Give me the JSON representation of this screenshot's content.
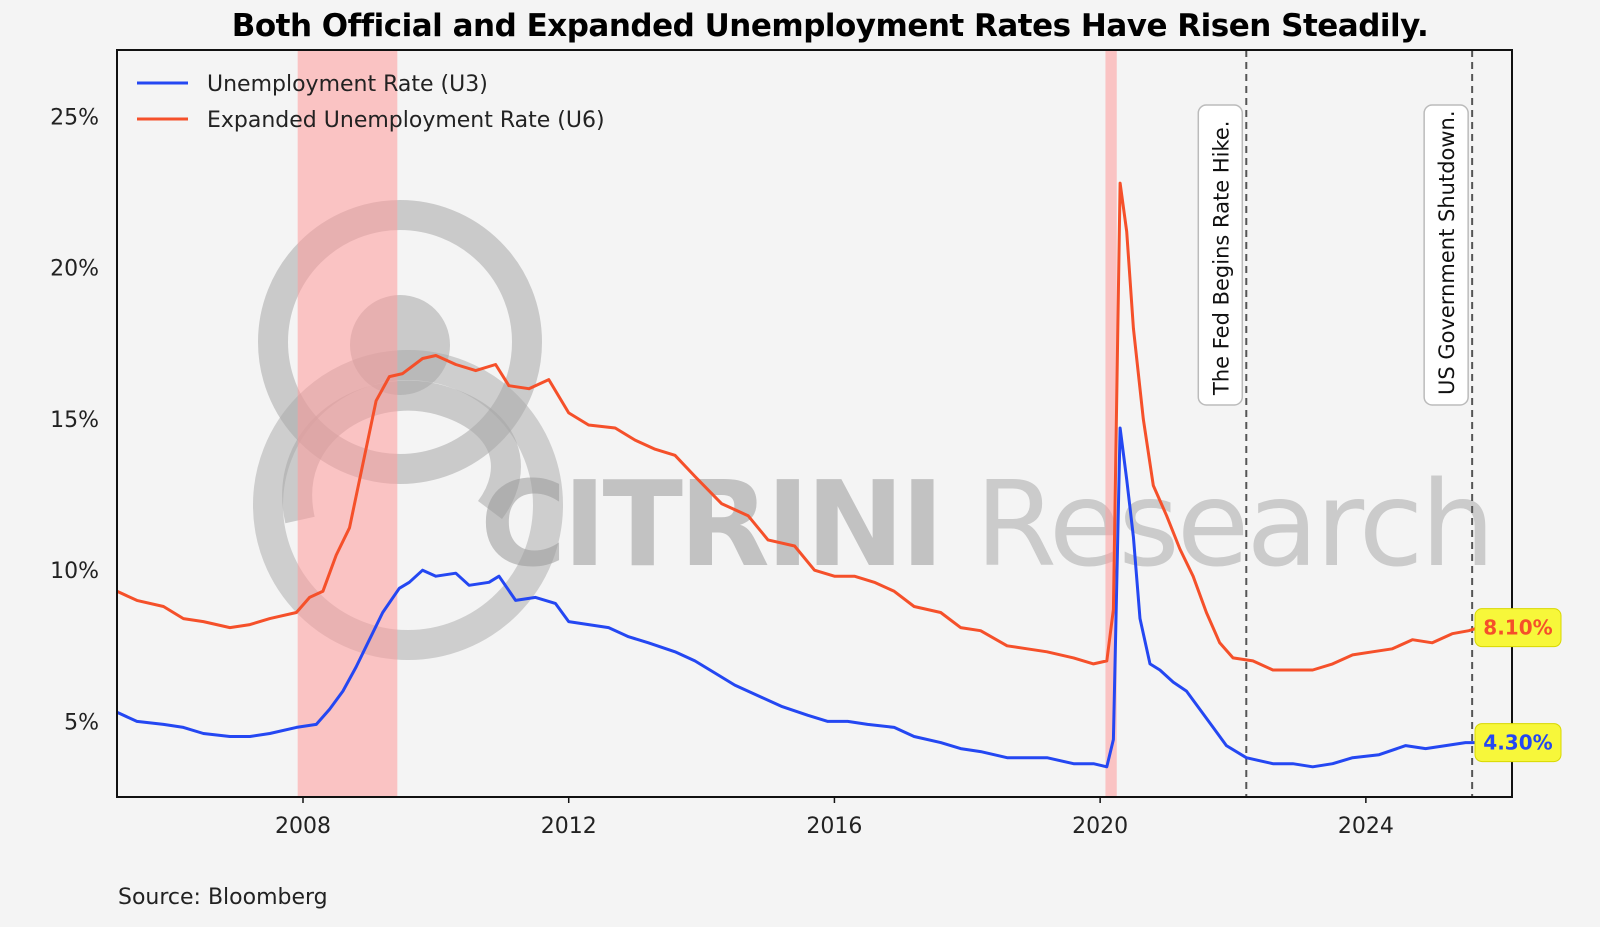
{
  "title": "Both Official and Expanded Unemployment Rates Have Risen Steadily.",
  "source": "Source: Bloomberg",
  "watermark": {
    "bold": "CITRINI",
    "light": "Research"
  },
  "colors": {
    "u3": "#2447f2",
    "u6": "#f5502a",
    "recession": "#ff9a9a",
    "label_bg": "#f7f73a"
  },
  "chart_data": {
    "type": "line",
    "title": "Both Official and Expanded Unemployment Rates Have Risen Steadily.",
    "xlim": [
      2005.2,
      2026.2
    ],
    "ylim": [
      2.5,
      27.2
    ],
    "x_ticks": [
      2008,
      2012,
      2016,
      2020,
      2024
    ],
    "x_tick_labels": [
      "2008",
      "2012",
      "2016",
      "2020",
      "2024"
    ],
    "y_ticks": [
      5,
      10,
      15,
      20,
      25
    ],
    "y_tick_labels": [
      "5%",
      "10%",
      "15%",
      "20%",
      "25%"
    ],
    "legend_position": "top-left",
    "grid": false,
    "recessions": [
      [
        2007.92,
        2009.42
      ],
      [
        2020.08,
        2020.25
      ]
    ],
    "events": [
      {
        "x": 2022.2,
        "label": "The Fed Begins Rate Hike."
      },
      {
        "x": 2025.6,
        "label": "US Government Shutdown."
      }
    ],
    "end_labels": {
      "u6": "8.10%",
      "u3": "4.30%"
    },
    "series": [
      {
        "name": "Unemployment Rate (U3)",
        "key": "u3",
        "points": [
          [
            2005.2,
            5.3
          ],
          [
            2005.5,
            5.0
          ],
          [
            2005.9,
            4.9
          ],
          [
            2006.2,
            4.8
          ],
          [
            2006.5,
            4.6
          ],
          [
            2006.9,
            4.5
          ],
          [
            2007.2,
            4.5
          ],
          [
            2007.5,
            4.6
          ],
          [
            2007.9,
            4.8
          ],
          [
            2008.2,
            4.9
          ],
          [
            2008.4,
            5.4
          ],
          [
            2008.6,
            6.0
          ],
          [
            2008.8,
            6.8
          ],
          [
            2009.0,
            7.7
          ],
          [
            2009.2,
            8.6
          ],
          [
            2009.45,
            9.4
          ],
          [
            2009.6,
            9.6
          ],
          [
            2009.8,
            10.0
          ],
          [
            2010.0,
            9.8
          ],
          [
            2010.3,
            9.9
          ],
          [
            2010.5,
            9.5
          ],
          [
            2010.8,
            9.6
          ],
          [
            2010.95,
            9.8
          ],
          [
            2011.2,
            9.0
          ],
          [
            2011.5,
            9.1
          ],
          [
            2011.8,
            8.9
          ],
          [
            2012.0,
            8.3
          ],
          [
            2012.3,
            8.2
          ],
          [
            2012.6,
            8.1
          ],
          [
            2012.9,
            7.8
          ],
          [
            2013.2,
            7.6
          ],
          [
            2013.6,
            7.3
          ],
          [
            2013.9,
            7.0
          ],
          [
            2014.2,
            6.6
          ],
          [
            2014.5,
            6.2
          ],
          [
            2014.9,
            5.8
          ],
          [
            2015.2,
            5.5
          ],
          [
            2015.6,
            5.2
          ],
          [
            2015.9,
            5.0
          ],
          [
            2016.2,
            5.0
          ],
          [
            2016.5,
            4.9
          ],
          [
            2016.9,
            4.8
          ],
          [
            2017.2,
            4.5
          ],
          [
            2017.6,
            4.3
          ],
          [
            2017.9,
            4.1
          ],
          [
            2018.2,
            4.0
          ],
          [
            2018.6,
            3.8
          ],
          [
            2018.9,
            3.8
          ],
          [
            2019.2,
            3.8
          ],
          [
            2019.6,
            3.6
          ],
          [
            2019.9,
            3.6
          ],
          [
            2020.1,
            3.5
          ],
          [
            2020.2,
            4.4
          ],
          [
            2020.3,
            14.7
          ],
          [
            2020.4,
            13.0
          ],
          [
            2020.5,
            11.1
          ],
          [
            2020.6,
            8.4
          ],
          [
            2020.75,
            6.9
          ],
          [
            2020.9,
            6.7
          ],
          [
            2021.1,
            6.3
          ],
          [
            2021.3,
            6.0
          ],
          [
            2021.5,
            5.4
          ],
          [
            2021.7,
            4.8
          ],
          [
            2021.9,
            4.2
          ],
          [
            2022.2,
            3.8
          ],
          [
            2022.6,
            3.6
          ],
          [
            2022.9,
            3.6
          ],
          [
            2023.2,
            3.5
          ],
          [
            2023.5,
            3.6
          ],
          [
            2023.8,
            3.8
          ],
          [
            2024.2,
            3.9
          ],
          [
            2024.6,
            4.2
          ],
          [
            2024.9,
            4.1
          ],
          [
            2025.2,
            4.2
          ],
          [
            2025.5,
            4.3
          ],
          [
            2025.7,
            4.3
          ]
        ]
      },
      {
        "name": "Expanded Unemployment Rate (U6)",
        "key": "u6",
        "points": [
          [
            2005.2,
            9.3
          ],
          [
            2005.5,
            9.0
          ],
          [
            2005.9,
            8.8
          ],
          [
            2006.2,
            8.4
          ],
          [
            2006.5,
            8.3
          ],
          [
            2006.9,
            8.1
          ],
          [
            2007.2,
            8.2
          ],
          [
            2007.5,
            8.4
          ],
          [
            2007.9,
            8.6
          ],
          [
            2008.1,
            9.1
          ],
          [
            2008.3,
            9.3
          ],
          [
            2008.5,
            10.5
          ],
          [
            2008.7,
            11.4
          ],
          [
            2008.9,
            13.5
          ],
          [
            2009.1,
            15.6
          ],
          [
            2009.3,
            16.4
          ],
          [
            2009.5,
            16.5
          ],
          [
            2009.8,
            17.0
          ],
          [
            2010.0,
            17.1
          ],
          [
            2010.3,
            16.8
          ],
          [
            2010.6,
            16.6
          ],
          [
            2010.9,
            16.8
          ],
          [
            2011.1,
            16.1
          ],
          [
            2011.4,
            16.0
          ],
          [
            2011.7,
            16.3
          ],
          [
            2012.0,
            15.2
          ],
          [
            2012.3,
            14.8
          ],
          [
            2012.7,
            14.7
          ],
          [
            2013.0,
            14.3
          ],
          [
            2013.3,
            14.0
          ],
          [
            2013.6,
            13.8
          ],
          [
            2013.9,
            13.1
          ],
          [
            2014.3,
            12.2
          ],
          [
            2014.7,
            11.8
          ],
          [
            2015.0,
            11.0
          ],
          [
            2015.4,
            10.8
          ],
          [
            2015.7,
            10.0
          ],
          [
            2016.0,
            9.8
          ],
          [
            2016.3,
            9.8
          ],
          [
            2016.6,
            9.6
          ],
          [
            2016.9,
            9.3
          ],
          [
            2017.2,
            8.8
          ],
          [
            2017.6,
            8.6
          ],
          [
            2017.9,
            8.1
          ],
          [
            2018.2,
            8.0
          ],
          [
            2018.6,
            7.5
          ],
          [
            2018.9,
            7.4
          ],
          [
            2019.2,
            7.3
          ],
          [
            2019.6,
            7.1
          ],
          [
            2019.9,
            6.9
          ],
          [
            2020.1,
            7.0
          ],
          [
            2020.2,
            8.7
          ],
          [
            2020.3,
            22.8
          ],
          [
            2020.4,
            21.2
          ],
          [
            2020.5,
            18.0
          ],
          [
            2020.65,
            15.0
          ],
          [
            2020.8,
            12.8
          ],
          [
            2021.0,
            11.8
          ],
          [
            2021.2,
            10.7
          ],
          [
            2021.4,
            9.8
          ],
          [
            2021.6,
            8.6
          ],
          [
            2021.8,
            7.6
          ],
          [
            2022.0,
            7.1
          ],
          [
            2022.3,
            7.0
          ],
          [
            2022.6,
            6.7
          ],
          [
            2022.9,
            6.7
          ],
          [
            2023.2,
            6.7
          ],
          [
            2023.5,
            6.9
          ],
          [
            2023.8,
            7.2
          ],
          [
            2024.1,
            7.3
          ],
          [
            2024.4,
            7.4
          ],
          [
            2024.7,
            7.7
          ],
          [
            2025.0,
            7.6
          ],
          [
            2025.3,
            7.9
          ],
          [
            2025.55,
            8.0
          ],
          [
            2025.7,
            8.1
          ]
        ]
      }
    ]
  }
}
